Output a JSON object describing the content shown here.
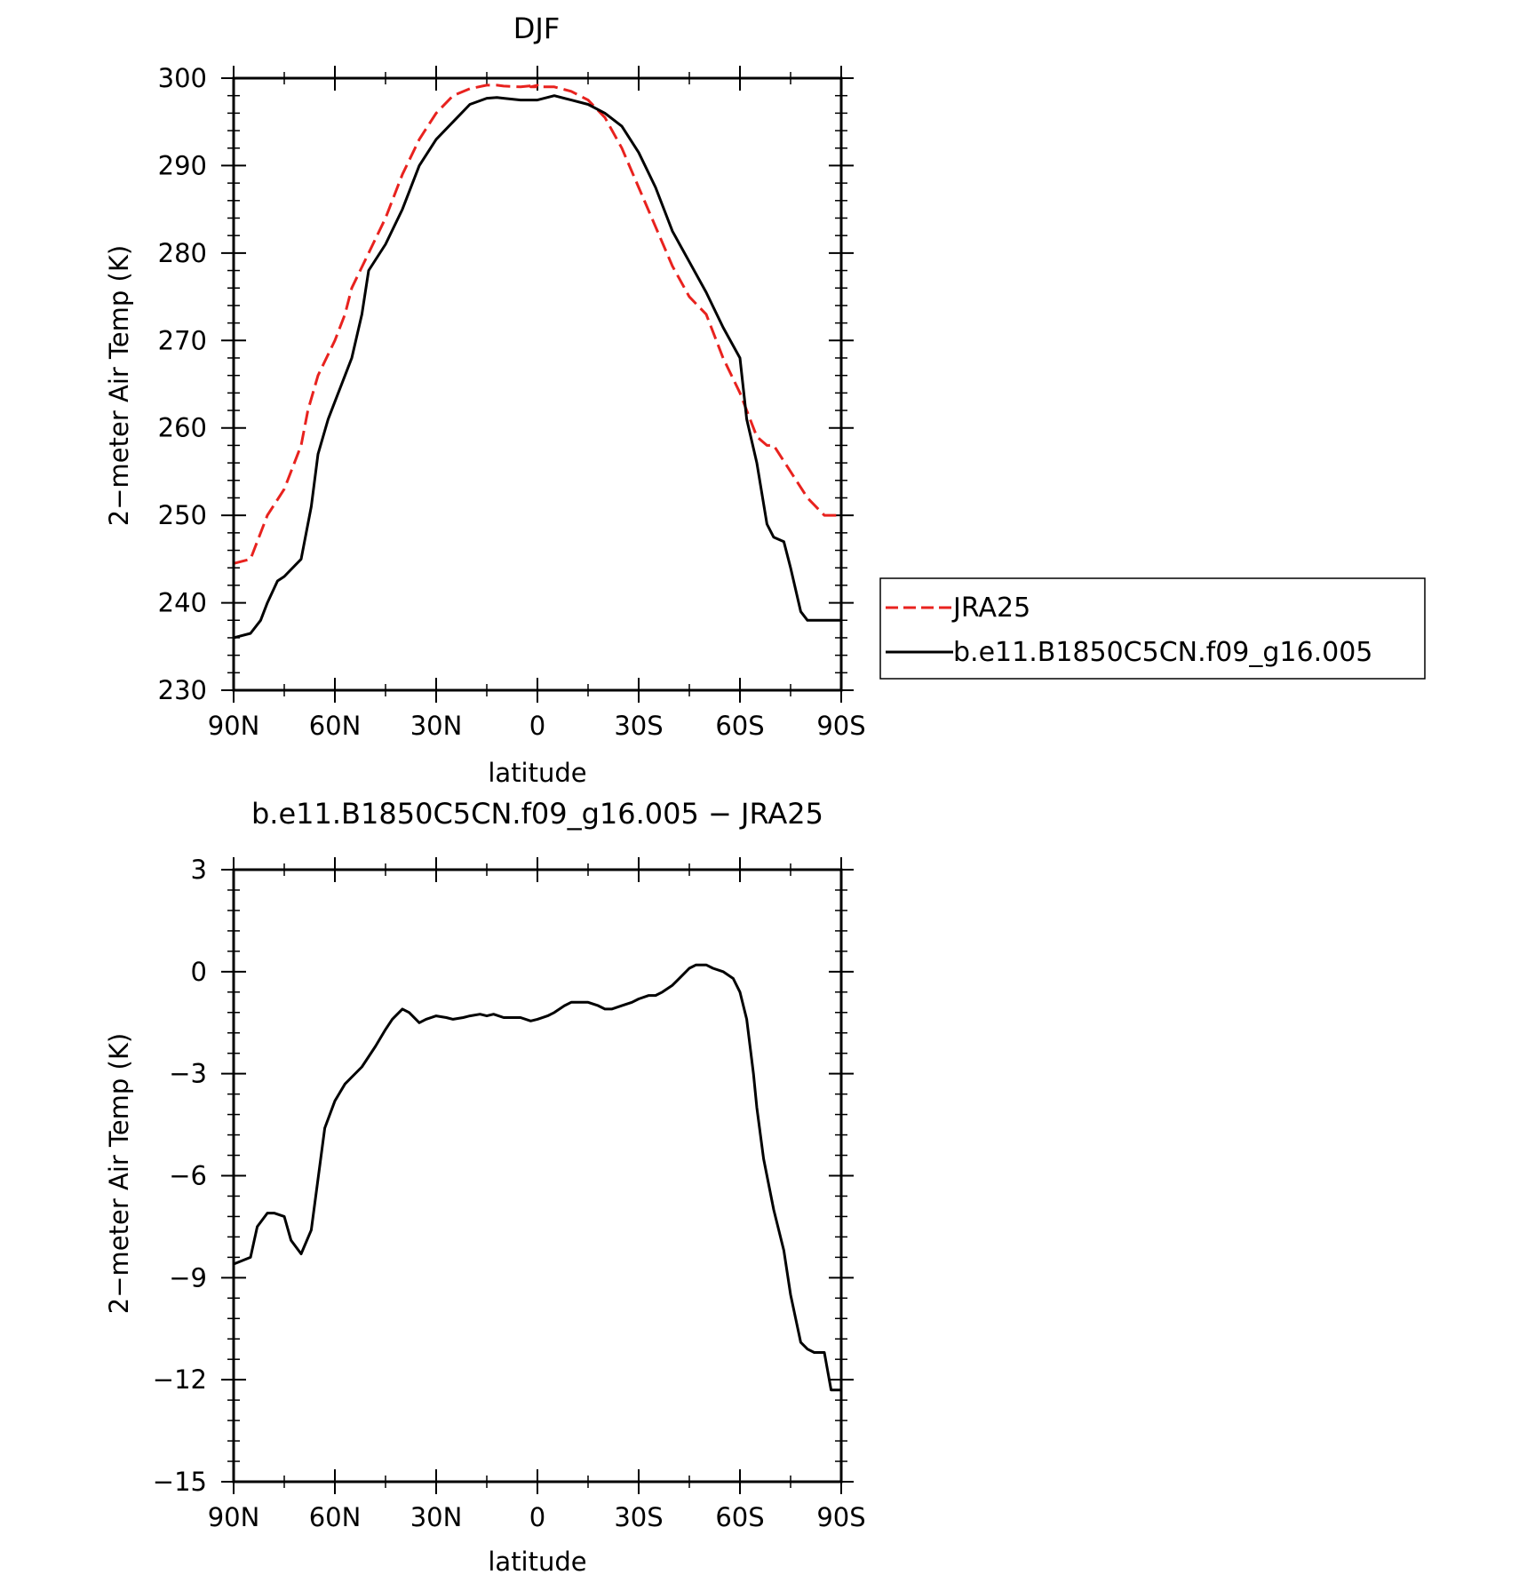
{
  "colors": {
    "jra25": "#e8221e",
    "model": "#000000"
  },
  "chart_data": [
    {
      "type": "line",
      "title": "DJF",
      "xlabel": "latitude",
      "ylabel": "2−meter Air Temp (K)",
      "xlim": [
        90,
        -90
      ],
      "ylim": [
        230,
        300
      ],
      "xticks": [
        {
          "value": 90,
          "label": "90N"
        },
        {
          "value": 60,
          "label": "60N"
        },
        {
          "value": 30,
          "label": "30N"
        },
        {
          "value": 0,
          "label": "0"
        },
        {
          "value": -30,
          "label": "30S"
        },
        {
          "value": -60,
          "label": "60S"
        },
        {
          "value": -90,
          "label": "90S"
        }
      ],
      "yticks": [
        {
          "value": 300,
          "label": "300"
        },
        {
          "value": 290,
          "label": "290"
        },
        {
          "value": 280,
          "label": "280"
        },
        {
          "value": 270,
          "label": "270"
        },
        {
          "value": 260,
          "label": "260"
        },
        {
          "value": 250,
          "label": "250"
        },
        {
          "value": 240,
          "label": "240"
        },
        {
          "value": 230,
          "label": "230"
        }
      ],
      "grid": false,
      "legend": "right",
      "series": [
        {
          "name": "JRA25",
          "color": "#e8221e",
          "style": "dashed",
          "x": [
            90,
            85,
            80,
            75,
            70,
            68,
            65,
            60,
            57,
            55,
            50,
            45,
            40,
            35,
            30,
            25,
            20,
            15,
            12,
            10,
            5,
            0,
            2,
            -5,
            -10,
            -15,
            -20,
            -25,
            -30,
            -35,
            -40,
            -45,
            -50,
            -55,
            -60,
            -65,
            -68,
            -70,
            -75,
            -80,
            -85,
            -90
          ],
          "y": [
            244.5,
            245,
            250,
            253,
            258,
            262,
            266,
            270,
            273,
            276,
            280,
            284,
            289,
            293,
            296,
            298,
            298.8,
            299.2,
            299.2,
            299.1,
            299,
            299.2,
            299,
            299,
            298.5,
            297.5,
            295.5,
            292,
            287.5,
            283,
            278.5,
            275,
            273,
            268,
            264,
            259,
            258,
            258,
            255,
            252,
            250,
            250
          ]
        },
        {
          "name": "b.e11.B1850C5CN.f09_g16.005",
          "color": "#000000",
          "style": "solid",
          "x": [
            90,
            85,
            82,
            80,
            77,
            75,
            70,
            67,
            65,
            62,
            60,
            57,
            55,
            52,
            50,
            45,
            40,
            35,
            30,
            25,
            20,
            15,
            12,
            10,
            5,
            0,
            -5,
            -10,
            -15,
            -20,
            -25,
            -30,
            -35,
            -40,
            -45,
            -50,
            -55,
            -60,
            -62,
            -65,
            -68,
            -70,
            -73,
            -75,
            -78,
            -80,
            -82,
            -85,
            -87,
            -90
          ],
          "y": [
            236,
            236.5,
            238,
            240,
            242.5,
            243,
            245,
            251,
            257,
            261,
            263,
            266,
            268,
            273,
            278,
            281,
            285,
            290,
            293,
            295,
            297,
            297.7,
            297.8,
            297.7,
            297.5,
            297.5,
            298,
            297.5,
            297,
            296,
            294.5,
            291.5,
            287.5,
            282.5,
            279,
            275.5,
            271.5,
            268,
            261,
            256,
            249,
            247.5,
            247,
            244,
            239,
            238,
            238,
            238,
            238,
            238
          ]
        }
      ]
    },
    {
      "type": "line",
      "title": "b.e11.B1850C5CN.f09_g16.005 − JRA25",
      "xlabel": "latitude",
      "ylabel": "2−meter Air Temp (K)",
      "xlim": [
        90,
        -90
      ],
      "ylim": [
        -15,
        3
      ],
      "xticks": [
        {
          "value": 90,
          "label": "90N"
        },
        {
          "value": 60,
          "label": "60N"
        },
        {
          "value": 30,
          "label": "30N"
        },
        {
          "value": 0,
          "label": "0"
        },
        {
          "value": -30,
          "label": "30S"
        },
        {
          "value": -60,
          "label": "60S"
        },
        {
          "value": -90,
          "label": "90S"
        }
      ],
      "yticks": [
        {
          "value": 3,
          "label": "3"
        },
        {
          "value": 0,
          "label": "0"
        },
        {
          "value": -3,
          "label": "−3"
        },
        {
          "value": -6,
          "label": "−6"
        },
        {
          "value": -9,
          "label": "−9"
        },
        {
          "value": -12,
          "label": "−12"
        },
        {
          "value": -15,
          "label": "−15"
        }
      ],
      "grid": false,
      "series": [
        {
          "color": "#000000",
          "style": "solid",
          "x": [
            90,
            85,
            83,
            80,
            78,
            75,
            73,
            70,
            67,
            65,
            63,
            60,
            57,
            55,
            52,
            50,
            48,
            45,
            43,
            40,
            38,
            35,
            33,
            30,
            27,
            25,
            22,
            20,
            17,
            15,
            13,
            10,
            7,
            5,
            2,
            0,
            -3,
            -5,
            -8,
            -10,
            -13,
            -15,
            -18,
            -20,
            -22,
            -25,
            -28,
            -30,
            -33,
            -35,
            -37,
            -40,
            -43,
            -45,
            -47,
            -50,
            -52,
            -55,
            -58,
            -60,
            -62,
            -64,
            -65,
            -67,
            -70,
            -73,
            -75,
            -78,
            -80,
            -82,
            -85,
            -87,
            -90
          ],
          "y": [
            -8.6,
            -8.4,
            -7.5,
            -7.1,
            -7.1,
            -7.2,
            -7.9,
            -8.3,
            -7.6,
            -6.1,
            -4.6,
            -3.8,
            -3.3,
            -3.1,
            -2.8,
            -2.5,
            -2.2,
            -1.7,
            -1.4,
            -1.1,
            -1.2,
            -1.5,
            -1.4,
            -1.3,
            -1.35,
            -1.4,
            -1.35,
            -1.3,
            -1.25,
            -1.3,
            -1.25,
            -1.35,
            -1.35,
            -1.35,
            -1.45,
            -1.4,
            -1.3,
            -1.2,
            -1.0,
            -0.9,
            -0.9,
            -0.9,
            -1.0,
            -1.1,
            -1.1,
            -1.0,
            -0.9,
            -0.8,
            -0.7,
            -0.7,
            -0.6,
            -0.4,
            -0.1,
            0.1,
            0.2,
            0.2,
            0.1,
            0.0,
            -0.2,
            -0.6,
            -1.4,
            -3.0,
            -4.0,
            -5.5,
            -7.0,
            -8.2,
            -9.5,
            -10.9,
            -11.1,
            -11.2,
            -11.2,
            -12.3,
            -12.3
          ]
        }
      ]
    }
  ]
}
